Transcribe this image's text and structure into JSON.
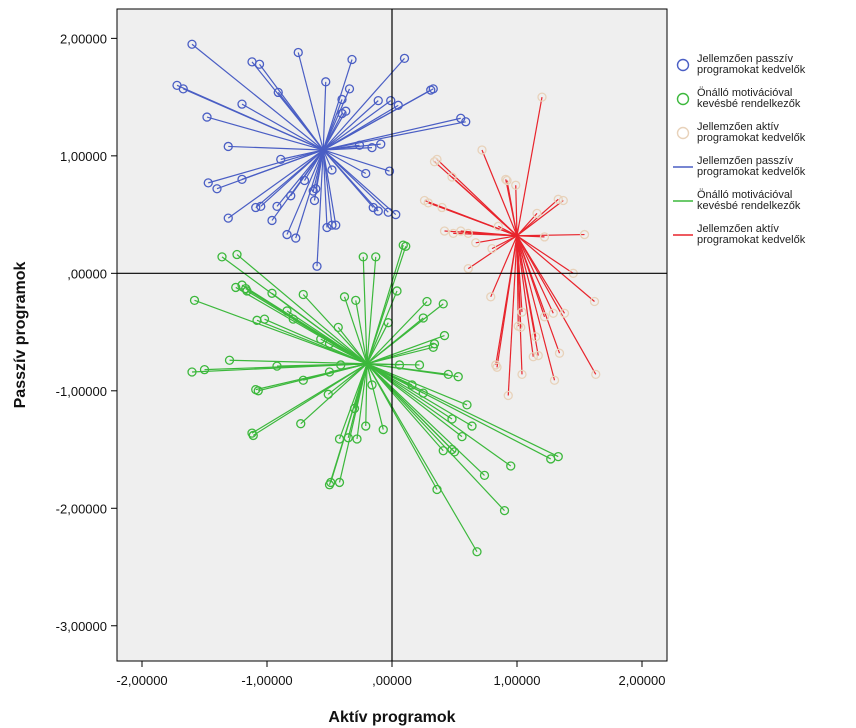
{
  "chart_data": {
    "type": "scatter",
    "xlabel": "Aktív programok",
    "ylabel": "Passzív programok",
    "xlim": [
      -2.2,
      2.2
    ],
    "ylim": [
      -3.3,
      2.25
    ],
    "x_ticks": [
      -2,
      -1,
      0,
      1,
      2
    ],
    "x_tick_labels": [
      "-2,00000",
      "-1,00000",
      ",00000",
      "1,00000",
      "2,00000"
    ],
    "y_ticks": [
      2,
      1,
      0,
      -1,
      -2,
      -3
    ],
    "y_tick_labels": [
      "2,00000",
      "1,00000",
      ",00000",
      "-1,00000",
      "-2,00000",
      "-3,00000"
    ],
    "reference_lines": {
      "x": 0,
      "y": 0
    },
    "grid": false,
    "legend_position": "right",
    "colors": {
      "plot_background": "#efefef",
      "frame": "#000000",
      "passive": "#4a5ec4",
      "motivation": "#3cb83c",
      "active": "#e8242c",
      "active_marker": "#e8d2ba"
    },
    "legend": [
      {
        "kind": "marker",
        "color_key": "passive",
        "lines": [
          "Jellemzően passzív",
          "programokat kedvelők"
        ]
      },
      {
        "kind": "marker",
        "color_key": "motivation",
        "lines": [
          "Önálló motivációval",
          "kevésbé rendelkezők"
        ]
      },
      {
        "kind": "marker",
        "color_key": "active_marker",
        "lines": [
          "Jellemzően aktív",
          "programokat kedvelők"
        ]
      },
      {
        "kind": "line",
        "color_key": "passive",
        "lines": [
          "Jellemzően passzív",
          "programokat kedvelők"
        ]
      },
      {
        "kind": "line",
        "color_key": "motivation",
        "lines": [
          "Önálló motivációval",
          "kevésbé rendelkezők"
        ]
      },
      {
        "kind": "line",
        "color_key": "active",
        "lines": [
          "Jellemzően aktív",
          "programokat kedvelők"
        ]
      }
    ],
    "series": [
      {
        "name": "Jellemzően passzív programokat kedvelők",
        "color_key": "passive",
        "marker_color_key": "passive",
        "centroid": [
          -0.55,
          1.05
        ],
        "points": [
          [
            -1.6,
            1.95
          ],
          [
            -1.12,
            1.8
          ],
          [
            -1.06,
            1.78
          ],
          [
            -0.75,
            1.88
          ],
          [
            -0.32,
            1.82
          ],
          [
            0.1,
            1.83
          ],
          [
            -1.72,
            1.6
          ],
          [
            -1.67,
            1.57
          ],
          [
            -0.91,
            1.54
          ],
          [
            -0.53,
            1.63
          ],
          [
            -0.34,
            1.57
          ],
          [
            -0.4,
            1.48
          ],
          [
            -0.11,
            1.47
          ],
          [
            -0.01,
            1.47
          ],
          [
            0.05,
            1.43
          ],
          [
            0.33,
            1.57
          ],
          [
            0.31,
            1.56
          ],
          [
            0.55,
            1.32
          ],
          [
            0.59,
            1.29
          ],
          [
            -1.2,
            1.44
          ],
          [
            -1.48,
            1.33
          ],
          [
            -0.37,
            1.38
          ],
          [
            -0.4,
            1.36
          ],
          [
            -0.26,
            1.09
          ],
          [
            -0.16,
            1.07
          ],
          [
            -0.09,
            1.1
          ],
          [
            -1.31,
            1.08
          ],
          [
            -0.89,
            0.97
          ],
          [
            -0.02,
            0.87
          ],
          [
            -0.21,
            0.85
          ],
          [
            -0.48,
            0.88
          ],
          [
            -1.47,
            0.77
          ],
          [
            -1.4,
            0.72
          ],
          [
            -1.2,
            0.8
          ],
          [
            -0.7,
            0.79
          ],
          [
            -0.61,
            0.72
          ],
          [
            -0.81,
            0.66
          ],
          [
            -0.62,
            0.62
          ],
          [
            -0.63,
            0.7
          ],
          [
            -1.05,
            0.57
          ],
          [
            -1.09,
            0.56
          ],
          [
            -0.92,
            0.57
          ],
          [
            -0.96,
            0.45
          ],
          [
            -1.31,
            0.47
          ],
          [
            -0.15,
            0.56
          ],
          [
            -0.11,
            0.53
          ],
          [
            -0.03,
            0.52
          ],
          [
            0.03,
            0.5
          ],
          [
            -0.45,
            0.41
          ],
          [
            -0.48,
            0.41
          ],
          [
            -0.52,
            0.39
          ],
          [
            -0.84,
            0.33
          ],
          [
            -0.77,
            0.3
          ],
          [
            -0.6,
            0.06
          ]
        ]
      },
      {
        "name": "Önálló motivációval kevésbé rendelkezők",
        "color_key": "motivation",
        "marker_color_key": "motivation",
        "centroid": [
          -0.2,
          -0.77
        ],
        "points": [
          [
            -1.36,
            0.14
          ],
          [
            -1.24,
            0.16
          ],
          [
            -0.23,
            0.14
          ],
          [
            -0.13,
            0.14
          ],
          [
            0.09,
            0.24
          ],
          [
            0.11,
            0.23
          ],
          [
            -1.25,
            -0.12
          ],
          [
            -1.2,
            -0.1
          ],
          [
            -1.17,
            -0.13
          ],
          [
            -1.16,
            -0.15
          ],
          [
            -0.96,
            -0.17
          ],
          [
            -0.71,
            -0.18
          ],
          [
            -0.38,
            -0.2
          ],
          [
            -0.29,
            -0.23
          ],
          [
            0.04,
            -0.15
          ],
          [
            0.28,
            -0.24
          ],
          [
            0.41,
            -0.26
          ],
          [
            -1.58,
            -0.23
          ],
          [
            -1.08,
            -0.4
          ],
          [
            -1.02,
            -0.39
          ],
          [
            -0.84,
            -0.32
          ],
          [
            -0.79,
            -0.39
          ],
          [
            -0.57,
            -0.56
          ],
          [
            -0.5,
            -0.6
          ],
          [
            -0.43,
            -0.46
          ],
          [
            -0.03,
            -0.42
          ],
          [
            0.25,
            -0.38
          ],
          [
            0.42,
            -0.53
          ],
          [
            0.34,
            -0.6
          ],
          [
            0.33,
            -0.63
          ],
          [
            -1.3,
            -0.74
          ],
          [
            -1.6,
            -0.84
          ],
          [
            -1.5,
            -0.82
          ],
          [
            -0.92,
            -0.79
          ],
          [
            -0.71,
            -0.91
          ],
          [
            -0.5,
            -0.84
          ],
          [
            -0.41,
            -0.78
          ],
          [
            0.06,
            -0.78
          ],
          [
            0.22,
            -0.78
          ],
          [
            0.45,
            -0.86
          ],
          [
            0.53,
            -0.88
          ],
          [
            -1.09,
            -0.99
          ],
          [
            -1.07,
            -1.0
          ],
          [
            -0.51,
            -1.03
          ],
          [
            -0.16,
            -0.95
          ],
          [
            0.16,
            -0.95
          ],
          [
            0.25,
            -1.02
          ],
          [
            0.6,
            -1.12
          ],
          [
            -0.3,
            -1.15
          ],
          [
            -0.21,
            -1.3
          ],
          [
            -0.28,
            -1.41
          ],
          [
            -0.35,
            -1.4
          ],
          [
            -0.42,
            -1.41
          ],
          [
            -0.07,
            -1.33
          ],
          [
            -0.73,
            -1.28
          ],
          [
            -1.12,
            -1.36
          ],
          [
            -1.11,
            -1.38
          ],
          [
            0.48,
            -1.24
          ],
          [
            0.64,
            -1.3
          ],
          [
            0.41,
            -1.51
          ],
          [
            0.5,
            -1.52
          ],
          [
            0.48,
            -1.5
          ],
          [
            0.56,
            -1.39
          ],
          [
            1.27,
            -1.58
          ],
          [
            1.33,
            -1.56
          ],
          [
            0.95,
            -1.64
          ],
          [
            0.74,
            -1.72
          ],
          [
            -0.49,
            -1.78
          ],
          [
            -0.42,
            -1.78
          ],
          [
            -0.5,
            -1.8
          ],
          [
            0.36,
            -1.84
          ],
          [
            0.9,
            -2.02
          ],
          [
            0.68,
            -2.37
          ]
        ]
      },
      {
        "name": "Jellemzően aktív programokat kedvelők",
        "color_key": "active",
        "marker_color_key": "active_marker",
        "centroid": [
          1.0,
          0.32
        ],
        "points": [
          [
            1.2,
            1.5
          ],
          [
            0.36,
            0.97
          ],
          [
            0.34,
            0.95
          ],
          [
            0.72,
            1.05
          ],
          [
            0.91,
            0.8
          ],
          [
            0.92,
            0.79
          ],
          [
            0.99,
            0.75
          ],
          [
            0.48,
            0.82
          ],
          [
            0.26,
            0.62
          ],
          [
            0.29,
            0.6
          ],
          [
            0.4,
            0.56
          ],
          [
            1.33,
            0.63
          ],
          [
            1.37,
            0.62
          ],
          [
            1.16,
            0.51
          ],
          [
            0.85,
            0.4
          ],
          [
            0.42,
            0.36
          ],
          [
            0.49,
            0.34
          ],
          [
            0.55,
            0.36
          ],
          [
            0.61,
            0.34
          ],
          [
            1.22,
            0.31
          ],
          [
            1.54,
            0.33
          ],
          [
            0.8,
            0.21
          ],
          [
            0.67,
            0.26
          ],
          [
            1.45,
            0.0
          ],
          [
            0.61,
            0.04
          ],
          [
            0.79,
            -0.2
          ],
          [
            1.04,
            -0.33
          ],
          [
            1.22,
            -0.37
          ],
          [
            1.29,
            -0.34
          ],
          [
            1.38,
            -0.34
          ],
          [
            1.62,
            -0.24
          ],
          [
            1.01,
            -0.45
          ],
          [
            1.03,
            -0.46
          ],
          [
            1.15,
            -0.54
          ],
          [
            1.13,
            -0.71
          ],
          [
            1.17,
            -0.7
          ],
          [
            1.34,
            -0.68
          ],
          [
            0.83,
            -0.78
          ],
          [
            0.84,
            -0.8
          ],
          [
            1.04,
            -0.86
          ],
          [
            1.3,
            -0.91
          ],
          [
            1.63,
            -0.86
          ],
          [
            0.93,
            -1.04
          ]
        ]
      }
    ]
  }
}
